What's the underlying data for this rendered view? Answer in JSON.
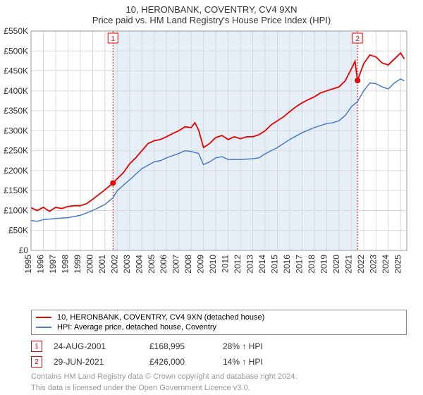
{
  "title_line1": "10, HERONBANK, COVENTRY, CV4 9XN",
  "title_line2": "Price paid vs. HM Land Registry's House Price Index (HPI)",
  "chart": {
    "type": "line",
    "bg_color": "#ffffff",
    "grid_color": "#d9d9d9",
    "band_color": "#e6eef7",
    "band_x_start": 2001.65,
    "band_x_end": 2021.5,
    "xlim": [
      1995,
      2025.5
    ],
    "ylim": [
      0,
      550000
    ],
    "ytick_step": 50000,
    "yticks": [
      "£0",
      "£50K",
      "£100K",
      "£150K",
      "£200K",
      "£250K",
      "£300K",
      "£350K",
      "£400K",
      "£450K",
      "£500K",
      "£550K"
    ],
    "xticks": [
      1995,
      1996,
      1997,
      1998,
      1999,
      2000,
      2001,
      2002,
      2003,
      2004,
      2005,
      2006,
      2007,
      2008,
      2009,
      2010,
      2011,
      2012,
      2013,
      2014,
      2015,
      2016,
      2017,
      2018,
      2019,
      2020,
      2021,
      2022,
      2023,
      2024,
      2025
    ],
    "series": [
      {
        "name": "property",
        "color": "#e60000",
        "width": 1.8,
        "data": [
          [
            1995,
            107000
          ],
          [
            1995.5,
            100000
          ],
          [
            1996,
            108000
          ],
          [
            1996.5,
            98000
          ],
          [
            1997,
            108000
          ],
          [
            1997.5,
            105000
          ],
          [
            1998,
            110000
          ],
          [
            1998.5,
            112000
          ],
          [
            1999,
            112000
          ],
          [
            1999.5,
            117000
          ],
          [
            2000,
            128000
          ],
          [
            2000.5,
            140000
          ],
          [
            2001,
            152000
          ],
          [
            2001.5,
            165000
          ],
          [
            2001.65,
            168995
          ],
          [
            2002,
            180000
          ],
          [
            2002.5,
            195000
          ],
          [
            2003,
            217000
          ],
          [
            2003.5,
            232000
          ],
          [
            2004,
            250000
          ],
          [
            2004.5,
            268000
          ],
          [
            2005,
            275000
          ],
          [
            2005.5,
            278000
          ],
          [
            2006,
            285000
          ],
          [
            2006.5,
            293000
          ],
          [
            2007,
            300000
          ],
          [
            2007.5,
            310000
          ],
          [
            2008,
            308000
          ],
          [
            2008.3,
            320000
          ],
          [
            2008.6,
            302000
          ],
          [
            2009,
            258000
          ],
          [
            2009.5,
            268000
          ],
          [
            2010,
            283000
          ],
          [
            2010.5,
            288000
          ],
          [
            2011,
            278000
          ],
          [
            2011.5,
            285000
          ],
          [
            2012,
            280000
          ],
          [
            2012.5,
            285000
          ],
          [
            2013,
            285000
          ],
          [
            2013.5,
            290000
          ],
          [
            2014,
            300000
          ],
          [
            2014.5,
            315000
          ],
          [
            2015,
            325000
          ],
          [
            2015.5,
            335000
          ],
          [
            2016,
            348000
          ],
          [
            2016.5,
            360000
          ],
          [
            2017,
            370000
          ],
          [
            2017.5,
            378000
          ],
          [
            2018,
            385000
          ],
          [
            2018.5,
            395000
          ],
          [
            2019,
            400000
          ],
          [
            2019.5,
            405000
          ],
          [
            2020,
            410000
          ],
          [
            2020.5,
            425000
          ],
          [
            2021,
            455000
          ],
          [
            2021.3,
            474000
          ],
          [
            2021.5,
            426000
          ],
          [
            2022,
            468000
          ],
          [
            2022.5,
            490000
          ],
          [
            2023,
            485000
          ],
          [
            2023.5,
            470000
          ],
          [
            2024,
            465000
          ],
          [
            2024.5,
            480000
          ],
          [
            2025,
            495000
          ],
          [
            2025.3,
            480000
          ]
        ]
      },
      {
        "name": "hpi",
        "color": "#4a7bc8",
        "width": 1.5,
        "data": [
          [
            1995,
            75000
          ],
          [
            1995.5,
            73000
          ],
          [
            1996,
            77000
          ],
          [
            1997,
            80000
          ],
          [
            1998,
            82000
          ],
          [
            1999,
            88000
          ],
          [
            2000,
            100000
          ],
          [
            2001,
            115000
          ],
          [
            2001.65,
            132000
          ],
          [
            2002,
            150000
          ],
          [
            2003,
            177000
          ],
          [
            2004,
            205000
          ],
          [
            2005,
            222000
          ],
          [
            2005.5,
            225000
          ],
          [
            2006,
            232000
          ],
          [
            2007,
            243000
          ],
          [
            2007.5,
            250000
          ],
          [
            2008,
            248000
          ],
          [
            2008.6,
            243000
          ],
          [
            2009,
            215000
          ],
          [
            2009.5,
            222000
          ],
          [
            2010,
            232000
          ],
          [
            2010.5,
            235000
          ],
          [
            2011,
            228000
          ],
          [
            2012,
            228000
          ],
          [
            2013,
            230000
          ],
          [
            2013.5,
            232000
          ],
          [
            2014,
            242000
          ],
          [
            2015,
            258000
          ],
          [
            2016,
            278000
          ],
          [
            2017,
            295000
          ],
          [
            2018,
            308000
          ],
          [
            2019,
            318000
          ],
          [
            2019.5,
            320000
          ],
          [
            2020,
            325000
          ],
          [
            2020.5,
            338000
          ],
          [
            2021,
            360000
          ],
          [
            2021.5,
            373000
          ],
          [
            2022,
            400000
          ],
          [
            2022.5,
            420000
          ],
          [
            2023,
            418000
          ],
          [
            2023.5,
            410000
          ],
          [
            2024,
            405000
          ],
          [
            2024.5,
            420000
          ],
          [
            2025,
            430000
          ],
          [
            2025.3,
            425000
          ]
        ]
      }
    ],
    "sale_points": [
      {
        "x": 2001.65,
        "y": 168995,
        "color": "#e60000"
      },
      {
        "x": 2021.5,
        "y": 426000,
        "color": "#e60000"
      }
    ],
    "markers": [
      {
        "num": "1",
        "x": 2001.65,
        "vline_color": "#e60000"
      },
      {
        "num": "2",
        "x": 2021.5,
        "vline_color": "#e60000"
      }
    ]
  },
  "legend": {
    "items": [
      {
        "color": "#e60000",
        "label": "10, HERONBANK, COVENTRY, CV4 9XN (detached house)"
      },
      {
        "color": "#4a7bc8",
        "label": "HPI: Average price, detached house, Coventry"
      }
    ]
  },
  "sales": [
    {
      "num": "1",
      "date": "24-AUG-2001",
      "price": "£168,995",
      "delta": "28% ↑ HPI"
    },
    {
      "num": "2",
      "date": "29-JUN-2021",
      "price": "£426,000",
      "delta": "14% ↑ HPI"
    }
  ],
  "footer1": "Contains HM Land Registry data © Crown copyright and database right 2024.",
  "footer2": "This data is licensed under the Open Government Licence v3.0."
}
